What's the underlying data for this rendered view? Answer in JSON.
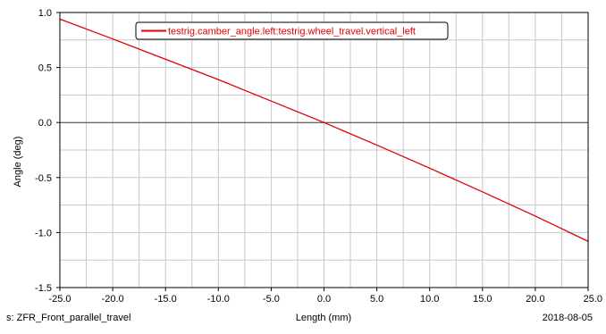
{
  "chart_data": {
    "type": "line",
    "title": "",
    "xlabel": "Length (mm)",
    "ylabel": "Angle (deg)",
    "xlim": [
      -25.0,
      25.0
    ],
    "ylim": [
      -1.5,
      1.0
    ],
    "x_ticks": [
      -25.0,
      -20.0,
      -15.0,
      -10.0,
      -5.0,
      0.0,
      5.0,
      10.0,
      15.0,
      20.0,
      25.0
    ],
    "x_tick_labels": [
      "-25.0",
      "-20.0",
      "-15.0",
      "-10.0",
      "-5.0",
      "0.0",
      "5.0",
      "10.0",
      "15.0",
      "20.0",
      "25.0"
    ],
    "y_ticks": [
      -1.5,
      -1.0,
      -0.5,
      0.0,
      0.5,
      1.0
    ],
    "y_tick_labels": [
      "-1.5",
      "-1.0",
      "-0.5",
      "0.0",
      "0.5",
      "1.0"
    ],
    "x_minor_step": 2.5,
    "y_minor_step": 0.25,
    "grid": true,
    "legend_position": "top-left",
    "series": [
      {
        "name": "testrig.camber_angle.left:testrig.wheel_travel.vertical_left",
        "color": "#e00000",
        "x": [
          -25.0,
          -20.0,
          -15.0,
          -10.0,
          -5.0,
          0.0,
          5.0,
          10.0,
          15.0,
          20.0,
          25.0
        ],
        "y": [
          0.94,
          0.76,
          0.575,
          0.39,
          0.195,
          0.0,
          -0.205,
          -0.415,
          -0.63,
          -0.85,
          -1.08
        ]
      }
    ]
  },
  "footer": {
    "left_text": "s: ZFR_Front_parallel_travel",
    "right_text": "2018-08-05"
  },
  "colors": {
    "grid": "#c8c8c8",
    "axis": "#000000",
    "zero_line": "#404040"
  }
}
